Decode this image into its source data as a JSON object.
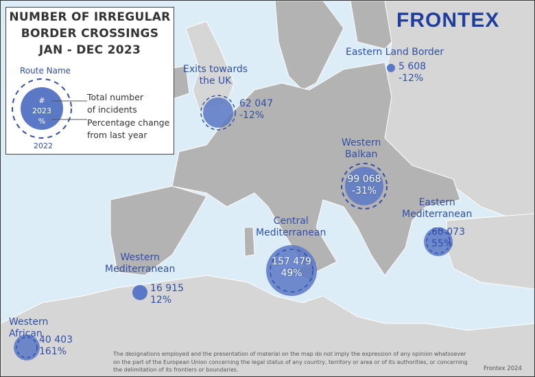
{
  "legend": {
    "title_lines": [
      "NUMBER OF IRREGULAR",
      "BORDER CROSSINGS",
      "JAN - DEC 2023"
    ],
    "route_name": "Route Name",
    "hash": "#",
    "year_current": "2023",
    "percent": "%",
    "year_previous": "2022",
    "total_label_1": "Total number",
    "total_label_2": "of incidents",
    "pct_label_1": "Percentage change",
    "pct_label_2": "from last year"
  },
  "brand": "FRONTEX",
  "colors": {
    "circle_fill": "#5b78c6",
    "label": "#2f4fa6",
    "sea": "#dcedf8",
    "land_eu": "#b3b3b3",
    "land_other": "#d6d6d6"
  },
  "routes": [
    {
      "name_lines": [
        "Exits towards",
        "the UK"
      ],
      "count": "62 047",
      "change": "-12%"
    },
    {
      "name_lines": [
        "Eastern Land Border"
      ],
      "count": "5 608",
      "change": "-12%"
    },
    {
      "name_lines": [
        "Western",
        "Balkan"
      ],
      "count": "99 068",
      "change": "-31%"
    },
    {
      "name_lines": [
        "Eastern",
        "Mediterranean"
      ],
      "count": "60 073",
      "change": "55%"
    },
    {
      "name_lines": [
        "Central",
        "Mediterranean"
      ],
      "count": "157 479",
      "change": "49%"
    },
    {
      "name_lines": [
        "Western",
        "Mediterranean"
      ],
      "count": "16 915",
      "change": "12%"
    },
    {
      "name_lines": [
        "Western",
        "African"
      ],
      "count": "40 403",
      "change": "161%"
    }
  ],
  "disclaimer": "The designations employed and the presentation of material on the map do not imply the expression of any opinion whatsoever on the part of the European Union concerning the legal status of any country, territory or area or of its authorities, or concerning the delimitation of its frontiers or boundaries.",
  "credit": "Frontex 2024"
}
